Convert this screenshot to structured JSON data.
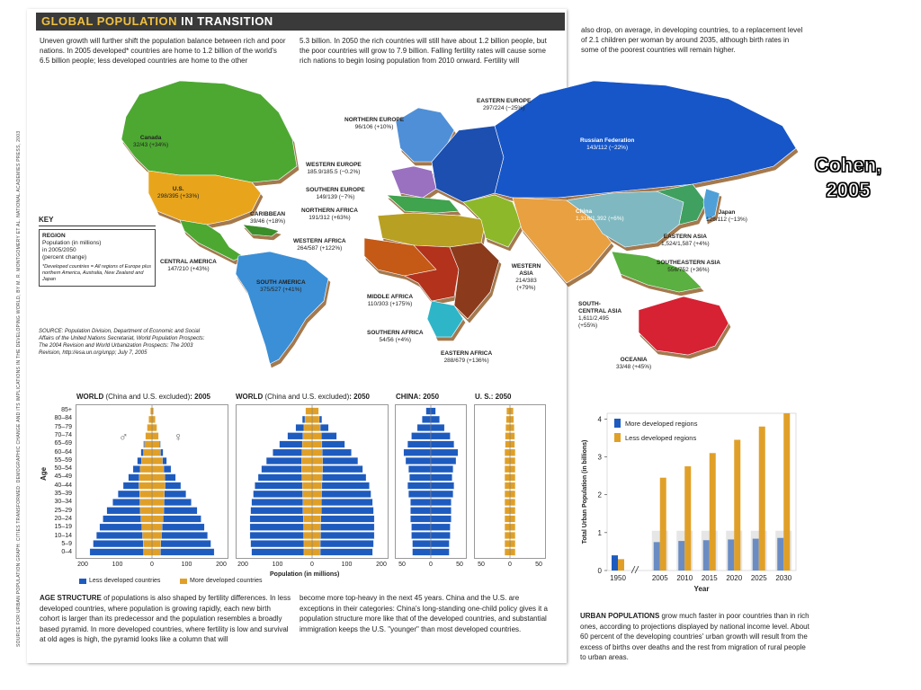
{
  "header": {
    "title_part1": "GLOBAL POPULATION",
    "title_part2": " IN TRANSITION"
  },
  "intro": {
    "col1": "Uneven growth will further shift the population balance between rich and poor nations. In 2005 developed* countries are home to 1.2 billion of the world's 6.5 billion people; less developed countries are home to the other",
    "col2": "5.3 billion. In 2050 the rich countries will still have about 1.2 billion people, but the poor countries will grow to 7.9 billion. Falling fertility rates will cause some rich nations to begin losing population from 2010 onward. Fertility will",
    "col3": "also drop, on average, in developing countries, to a replacement level of 2.1 children per woman by around 2035, although birth rates in some of the poorest countries will remain higher."
  },
  "side_credit": "SOURCE FOR URBAN POPULATION GRAPH: CITIES TRANSFORMED: DEMOGRAPHIC CHANGE AND ITS IMPLICATIONS IN THE DEVELOPING WORLD, BY M. R. MONTGOMERY ET AL. NATIONAL ACADEMIES PRESS, 2003",
  "cohen_label": {
    "line1": "Cohen,",
    "line2": "2005"
  },
  "map": {
    "colors": {
      "north_america": "#4ea832",
      "us": "#e8a51c",
      "central_america": "#4ea832",
      "caribbean": "#3a8e2a",
      "south_america": "#3b8fd6",
      "northern_europe": "#4f8fd8",
      "western_europe": "#9a6fc0",
      "southern_europe": "#3fa34d",
      "eastern_europe": "#1f4fb0",
      "russia": "#1656c8",
      "northern_africa": "#b8a020",
      "western_africa": "#c45a18",
      "middle_africa": "#b2301c",
      "eastern_africa": "#8b3a1c",
      "southern_africa": "#2fb5c8",
      "western_asia": "#8db82a",
      "china": "#7fb8c0",
      "japan": "#4fa0d8",
      "eastern_asia": "#3fa060",
      "south_central_asia": "#e8a040",
      "southeastern_asia": "#5ab040",
      "oceania": "#d62030"
    },
    "regions": {
      "canada": {
        "name": "Canada",
        "value": "32/43 (+34%)"
      },
      "us": {
        "name": "U.S.",
        "value": "298/395 (+33%)"
      },
      "caribbean": {
        "name": "CARIBBEAN",
        "value": "39/46 (+18%)"
      },
      "central_america": {
        "name": "CENTRAL AMERICA",
        "value": "147/210 (+43%)"
      },
      "south_america": {
        "name": "SOUTH AMERICA",
        "value": "375/527 (+41%)"
      },
      "northern_europe": {
        "name": "NORTHERN EUROPE",
        "value": "96/106 (+10%)"
      },
      "western_europe": {
        "name": "WESTERN EUROPE",
        "value": "185.9/185.5 (−0.2%)"
      },
      "southern_europe": {
        "name": "SOUTHERN EUROPE",
        "value": "149/139 (−7%)"
      },
      "northern_africa": {
        "name": "NORTHERN AFRICA",
        "value": "191/312 (+63%)"
      },
      "western_africa": {
        "name": "WESTERN AFRICA",
        "value": "264/587 (+122%)"
      },
      "middle_africa": {
        "name": "MIDDLE AFRICA",
        "value": "110/303 (+175%)"
      },
      "southern_africa": {
        "name": "SOUTHERN AFRICA",
        "value": "54/56 (+4%)"
      },
      "eastern_africa": {
        "name": "EASTERN AFRICA",
        "value": "288/679 (+136%)"
      },
      "eastern_europe": {
        "name": "EASTERN EUROPE",
        "value": "297/224 (−25%)"
      },
      "western_asia": {
        "name": "WESTERN ASIA",
        "value": "214/383 (+79%)"
      },
      "russia": {
        "name": "Russian Federation",
        "value": "143/112 (−22%)"
      },
      "china": {
        "name": "China",
        "value": "1,316/1,392 (+6%)"
      },
      "japan": {
        "name": "Japan",
        "value": "128/112 (−13%)"
      },
      "eastern_asia": {
        "name": "EASTERN ASIA",
        "value": "1,524/1,587 (+4%)"
      },
      "southeastern_asia": {
        "name": "SOUTHEASTERN ASIA",
        "value": "556/752 (+36%)"
      },
      "south_central_asia": {
        "name": "SOUTH-CENTRAL ASIA",
        "value": "1,611/2,495 (+55%)"
      },
      "oceania": {
        "name": "OCEANIA",
        "value": "33/48 (+45%)"
      }
    }
  },
  "key": {
    "title": "KEY",
    "region": "REGION",
    "desc1": "Population (in millions)",
    "desc2": "in 2005/2050",
    "desc3": "(percent change)",
    "note": "*Developed countries = All regions of Europe plus northern America, Australia, New Zealand and Japan"
  },
  "source": "SOURCE: Population Division, Department of Economic and Social Affairs of the United Nations Secretariat, World Population Prospects: The 2004 Revision and World Urbanization Prospects: The 2003 Revision, http://esa.un.org/unpp; July 7, 2005",
  "pyramids": {
    "age_axis_title": "Age",
    "age_groups": [
      "85+",
      "80–84",
      "75–79",
      "70–74",
      "65–69",
      "60–64",
      "55–59",
      "50–54",
      "45–49",
      "40–44",
      "35–39",
      "30–34",
      "25–29",
      "20–24",
      "15–19",
      "10–14",
      "5–9",
      "0–4"
    ],
    "male_symbol": "♂",
    "female_symbol": "♀",
    "x_axis_title": "Population (in millions)",
    "legend_less": "Less developed countries",
    "legend_more": "More developed countries",
    "colors": {
      "less": "#1e5bbf",
      "more": "#e0a028"
    },
    "panels": [
      {
        "title": "WORLD",
        "sub": "(China and U.S. excluded)",
        "year": ": 2005",
        "ticks": [
          "200",
          "100",
          "0",
          "100",
          "200"
        ]
      },
      {
        "title": "WORLD",
        "sub": "(China and U.S. excluded)",
        "year": ": 2050",
        "ticks": [
          "200",
          "100",
          "0",
          "100",
          "200"
        ]
      },
      {
        "title": "CHINA",
        "sub": "",
        "year": ": 2050",
        "ticks": [
          "50",
          "0",
          "50"
        ]
      },
      {
        "title": "U. S.",
        "sub": "",
        "year": ": 2050",
        "ticks": [
          "50",
          "0",
          "50"
        ]
      }
    ]
  },
  "age_text": {
    "bold": "AGE STRUCTURE",
    "col1": " of populations is also shaped by fertility differences. In less developed countries, where population is growing rapidly, each new birth cohort is larger than its predecessor and the population resembles a broadly based pyramid. In more developed countries, where fertility is low and survival at old ages is high, the pyramid looks like a column that will",
    "col2": "become more top-heavy in the next 45 years. China and the U.S. are exceptions in their categories: China's long-standing one-child policy gives it a population structure more like that of the developed countries, and substantial immigration keeps the U.S. \"younger\" than most developed countries."
  },
  "urban_text": {
    "bold": "URBAN POPULATIONS",
    "body": " grow much faster in poor countries than in rich ones, according to projections displayed by national income level. About 60 percent of the developing countries' urban growth will result from the excess of births over deaths and the rest from migration of rural people to urban areas."
  },
  "chart_data": [
    {
      "type": "bar",
      "title": "",
      "xlabel": "Year",
      "ylabel": "Total Urban Population (in billions)",
      "categories": [
        "1950",
        "2005",
        "2010",
        "2015",
        "2020",
        "2025",
        "2030"
      ],
      "ylim": [
        0,
        4
      ],
      "yticks": [
        "0",
        "1",
        "2",
        "3",
        "4"
      ],
      "legend": "top-left",
      "series": [
        {
          "name": "More developed regions",
          "color": "#1e5bbf",
          "values": [
            0.4,
            0.75,
            0.78,
            0.8,
            0.82,
            0.84,
            0.86
          ]
        },
        {
          "name": "Less developed regions",
          "color": "#e0a028",
          "values": [
            0.3,
            2.45,
            2.75,
            3.1,
            3.45,
            3.8,
            4.15
          ]
        }
      ]
    },
    {
      "type": "bar",
      "title": "WORLD (China and U.S. excluded): 2005",
      "xlabel": "Population (in millions)",
      "ylabel": "Age",
      "categories": [
        "85+",
        "80–84",
        "75–79",
        "70–74",
        "65–69",
        "60–64",
        "55–59",
        "50–54",
        "45–49",
        "40–44",
        "35–39",
        "30–34",
        "25–29",
        "20–24",
        "15–19",
        "10–14",
        "5–9",
        "0–4"
      ],
      "series": [
        {
          "name": "Less developed countries",
          "values": [
            2,
            5,
            10,
            18,
            26,
            34,
            45,
            58,
            72,
            88,
            104,
            120,
            138,
            150,
            160,
            170,
            180,
            190
          ]
        },
        {
          "name": "More developed countries",
          "values": [
            5,
            10,
            15,
            20,
            23,
            26,
            32,
            36,
            39,
            40,
            38,
            37,
            36,
            34,
            31,
            29,
            27,
            26
          ]
        }
      ]
    },
    {
      "type": "bar",
      "title": "WORLD (China and U.S. excluded): 2050",
      "xlabel": "Population (in millions)",
      "ylabel": "Age",
      "categories": [
        "85+",
        "80–84",
        "75–79",
        "70–74",
        "65–69",
        "60–64",
        "55–59",
        "50–54",
        "45–49",
        "40–44",
        "35–39",
        "30–34",
        "25–29",
        "20–24",
        "15–19",
        "10–14",
        "5–9",
        "0–4"
      ],
      "series": [
        {
          "name": "Less developed countries",
          "values": [
            15,
            30,
            50,
            75,
            100,
            120,
            140,
            155,
            165,
            175,
            180,
            185,
            188,
            190,
            190,
            190,
            188,
            185
          ]
        },
        {
          "name": "More developed countries",
          "values": [
            20,
            22,
            25,
            28,
            30,
            31,
            32,
            32,
            31,
            30,
            29,
            28,
            28,
            27,
            26,
            26,
            25,
            25
          ]
        }
      ]
    },
    {
      "type": "bar",
      "title": "CHINA: 2050",
      "xlabel": "Population (in millions)",
      "ylabel": "Age",
      "categories": [
        "85+",
        "80–84",
        "75–79",
        "70–74",
        "65–69",
        "60–64",
        "55–59",
        "50–54",
        "45–49",
        "40–44",
        "35–39",
        "30–34",
        "25–29",
        "20–24",
        "15–19",
        "10–14",
        "5–9",
        "0–4"
      ],
      "series": [
        {
          "name": "Less developed countries",
          "values": [
            10,
            18,
            28,
            40,
            48,
            56,
            52,
            46,
            44,
            48,
            46,
            42,
            42,
            42,
            40,
            40,
            38,
            38
          ]
        }
      ]
    },
    {
      "type": "bar",
      "title": "U. S.: 2050",
      "xlabel": "Population (in millions)",
      "ylabel": "Age",
      "categories": [
        "85+",
        "80–84",
        "75–79",
        "70–74",
        "65–69",
        "60–64",
        "55–59",
        "50–54",
        "45–49",
        "40–44",
        "35–39",
        "30–34",
        "25–29",
        "20–24",
        "15–19",
        "10–14",
        "5–9",
        "0–4"
      ],
      "series": [
        {
          "name": "More developed countries",
          "values": [
            7,
            8,
            9,
            10,
            10,
            11,
            11,
            11,
            11,
            11,
            11,
            11,
            11,
            11,
            11,
            11,
            11,
            11
          ]
        }
      ]
    }
  ]
}
